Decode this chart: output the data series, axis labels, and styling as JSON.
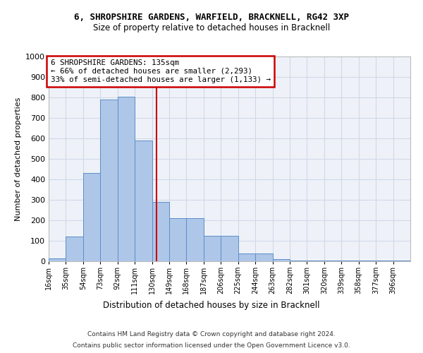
{
  "title1": "6, SHROPSHIRE GARDENS, WARFIELD, BRACKNELL, RG42 3XP",
  "title2": "Size of property relative to detached houses in Bracknell",
  "xlabel": "Distribution of detached houses by size in Bracknell",
  "ylabel": "Number of detached properties",
  "bar_labels": [
    "16sqm",
    "35sqm",
    "54sqm",
    "73sqm",
    "92sqm",
    "111sqm",
    "130sqm",
    "149sqm",
    "168sqm",
    "187sqm",
    "206sqm",
    "225sqm",
    "244sqm",
    "263sqm",
    "282sqm",
    "301sqm",
    "320sqm",
    "339sqm",
    "358sqm",
    "377sqm",
    "396sqm"
  ],
  "bar_values": [
    15,
    120,
    430,
    790,
    805,
    590,
    290,
    210,
    210,
    125,
    125,
    38,
    38,
    10,
    5,
    5,
    5,
    5,
    5,
    5,
    5
  ],
  "bar_color": "#aec6e8",
  "bar_edge_color": "#5b8fc9",
  "property_line_x": 135,
  "bin_edges": [
    16,
    35,
    54,
    73,
    92,
    111,
    130,
    149,
    168,
    187,
    206,
    225,
    244,
    263,
    282,
    301,
    320,
    339,
    358,
    377,
    396,
    415
  ],
  "annotation_text": "6 SHROPSHIRE GARDENS: 135sqm\n← 66% of detached houses are smaller (2,293)\n33% of semi-detached houses are larger (1,133) →",
  "annotation_box_color": "#ffffff",
  "annotation_box_edge": "#cc0000",
  "property_line_color": "#cc0000",
  "grid_color": "#d0d8e8",
  "background_color": "#eef2f8",
  "ylim": [
    0,
    1000
  ],
  "yticks": [
    0,
    100,
    200,
    300,
    400,
    500,
    600,
    700,
    800,
    900,
    1000
  ],
  "footer1": "Contains HM Land Registry data © Crown copyright and database right 2024.",
  "footer2": "Contains public sector information licensed under the Open Government Licence v3.0."
}
